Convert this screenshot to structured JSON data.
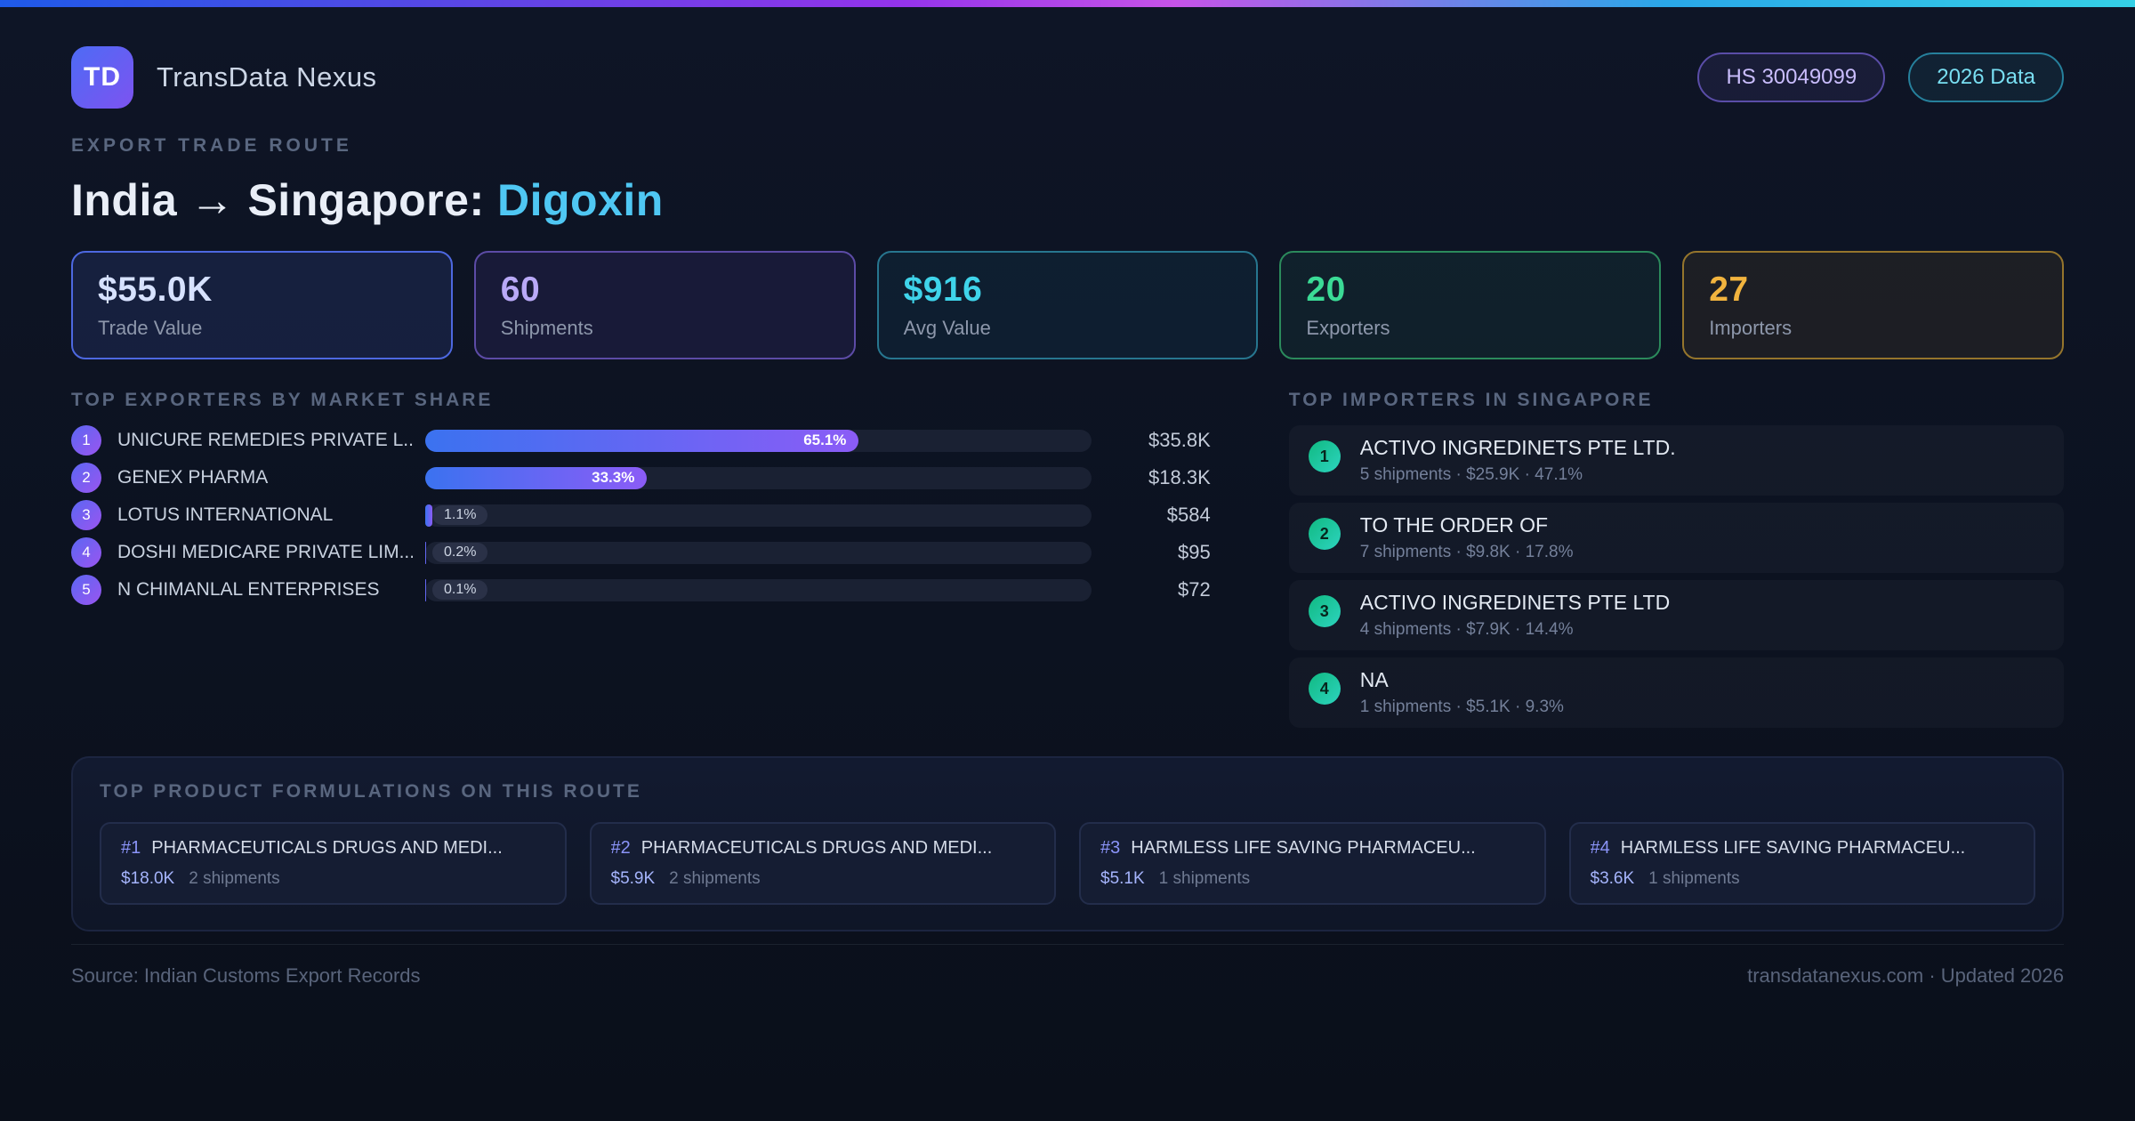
{
  "header": {
    "logo_text": "TD",
    "app_name": "TransData Nexus",
    "hs_badge": "HS 30049099",
    "year_badge": "2026 Data"
  },
  "route": {
    "eyebrow": "EXPORT TRADE ROUTE",
    "title_prefix": "India → Singapore: ",
    "title_highlight": "Digoxin"
  },
  "stats": [
    {
      "value": "$55.0K",
      "label": "Trade Value",
      "accent": "#4d68e0",
      "value_color": "#d7e2ff",
      "tint": "rgba(77,104,224,0.14)"
    },
    {
      "value": "60",
      "label": "Shipments",
      "accent": "#5c4ba6",
      "value_color": "#b9a9f7",
      "tint": "rgba(124,92,246,0.10)"
    },
    {
      "value": "$916",
      "label": "Avg Value",
      "accent": "#27768f",
      "value_color": "#3fd4ea",
      "tint": "rgba(34,170,200,0.08)"
    },
    {
      "value": "20",
      "label": "Exporters",
      "accent": "#2b8a5c",
      "value_color": "#3bdb96",
      "tint": "rgba(52,211,153,0.07)"
    },
    {
      "value": "27",
      "label": "Importers",
      "accent": "#95752c",
      "value_color": "#f2b43e",
      "tint": "rgba(242,180,62,0.07)"
    }
  ],
  "exporters": {
    "title": "TOP EXPORTERS BY MARKET SHARE",
    "rows": [
      {
        "rank": 1,
        "name": "UNICURE REMEDIES PRIVATE L...",
        "share_pct": 65.1,
        "share_label": "65.1%",
        "value": "$35.8K"
      },
      {
        "rank": 2,
        "name": "GENEX PHARMA",
        "share_pct": 33.3,
        "share_label": "33.3%",
        "value": "$18.3K"
      },
      {
        "rank": 3,
        "name": "LOTUS INTERNATIONAL",
        "share_pct": 1.1,
        "share_label": "1.1%",
        "value": "$584"
      },
      {
        "rank": 4,
        "name": "DOSHI MEDICARE PRIVATE LIM...",
        "share_pct": 0.2,
        "share_label": "0.2%",
        "value": "$95"
      },
      {
        "rank": 5,
        "name": "N CHIMANLAL ENTERPRISES",
        "share_pct": 0.1,
        "share_label": "0.1%",
        "value": "$72"
      }
    ]
  },
  "importers": {
    "title": "TOP IMPORTERS IN SINGAPORE",
    "rows": [
      {
        "rank": 1,
        "name": "ACTIVO INGREDINETS PTE LTD.",
        "details": "5 shipments · $25.9K · 47.1%"
      },
      {
        "rank": 2,
        "name": "TO THE ORDER OF",
        "details": "7 shipments · $9.8K · 17.8%"
      },
      {
        "rank": 3,
        "name": "ACTIVO INGREDINETS PTE LTD",
        "details": "4 shipments · $7.9K · 14.4%"
      },
      {
        "rank": 4,
        "name": "NA",
        "details": "1 shipments · $5.1K · 9.3%"
      }
    ]
  },
  "formulations": {
    "title": "TOP PRODUCT FORMULATIONS ON THIS ROUTE",
    "cards": [
      {
        "rank": "#1",
        "name": "PHARMACEUTICALS DRUGS AND MEDI...",
        "value": "$18.0K",
        "shipments": "2 shipments"
      },
      {
        "rank": "#2",
        "name": "PHARMACEUTICALS DRUGS AND MEDI...",
        "value": "$5.9K",
        "shipments": "2 shipments"
      },
      {
        "rank": "#3",
        "name": "HARMLESS LIFE SAVING PHARMACEU...",
        "value": "$5.1K",
        "shipments": "1 shipments"
      },
      {
        "rank": "#4",
        "name": "HARMLESS LIFE SAVING PHARMACEU...",
        "value": "$3.6K",
        "shipments": "1 shipments"
      }
    ]
  },
  "footer": {
    "source": "Source: Indian Customs Export Records",
    "site": "transdatanexus.com · Updated 2026"
  },
  "colors": {
    "bar_fill_start": "#3b72f0",
    "bar_fill_end": "#8b5cf6",
    "highlight": "#4fc7f3",
    "topbar_gradient": [
      "#1e5ae8",
      "#9333ea",
      "#35d0e6"
    ]
  }
}
